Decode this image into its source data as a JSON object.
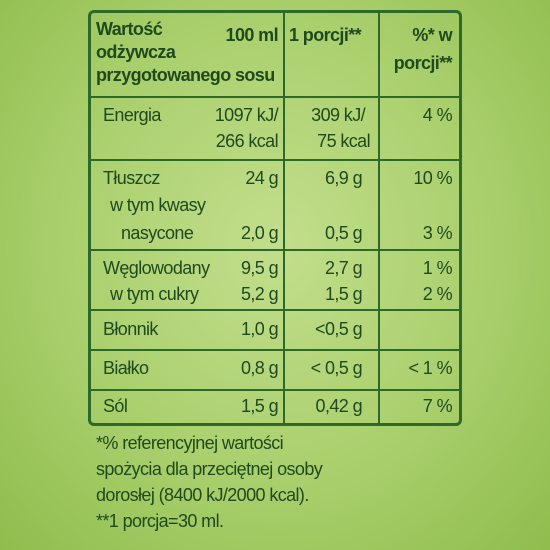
{
  "header": {
    "title_lines": [
      "Wartość",
      "odżywcza",
      "przygotowanego sosu"
    ],
    "per_100": "100 ml",
    "per_portion": "1 porcji**",
    "pct_lines": [
      "%* w",
      "porcji**"
    ]
  },
  "rows": [
    {
      "label": "Energia",
      "per_100_lines": [
        "1097 kJ/",
        "266 kcal"
      ],
      "per_portion_lines": [
        "309 kJ/",
        "75 kcal"
      ],
      "pct": "4 %"
    },
    {
      "label": "Tłuszcz",
      "per_100": "24 g",
      "per_portion": "6,9 g",
      "pct": "10 %",
      "sub_label_lines": [
        "w tym kwasy",
        "nasycone"
      ],
      "sub_per_100": "2,0 g",
      "sub_per_portion": "0,5 g",
      "sub_pct": "3 %"
    },
    {
      "label": "Węglowodany",
      "per_100": "9,5 g",
      "per_portion": "2,7 g",
      "pct": "1 %",
      "sub_label": "w tym cukry",
      "sub_per_100": "5,2 g",
      "sub_per_portion": "1,5 g",
      "sub_pct": "2 %"
    },
    {
      "label": "Błonnik",
      "per_100": "1,0 g",
      "per_portion": "<0,5 g"
    },
    {
      "label": "Białko",
      "per_100": "0,8 g",
      "per_portion": "< 0,5 g",
      "pct": "< 1 %"
    },
    {
      "label": "Sól",
      "per_100": "1,5 g",
      "per_portion": "0,42 g",
      "pct": "7 %"
    }
  ],
  "footnote_lines": [
    "*% referencyjnej wartości",
    "spożycia dla przeciętnej osoby",
    "dorosłej (8400 kJ/2000 kcal).",
    "**1 porcja=30 ml."
  ]
}
